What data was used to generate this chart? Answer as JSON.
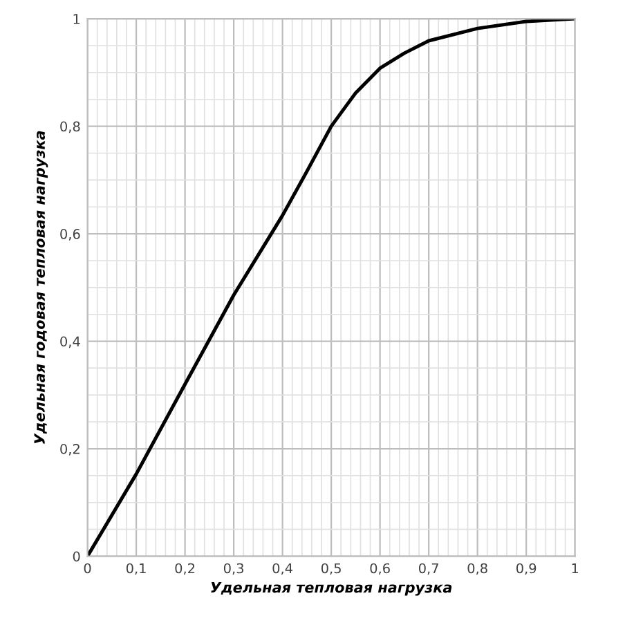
{
  "chart_data": {
    "type": "line",
    "xlabel": "Удельная тепловая нагрузка",
    "ylabel": "Удельная годовая тепловая нагрузка",
    "x": [
      0,
      0.1,
      0.2,
      0.3,
      0.4,
      0.45,
      0.5,
      0.55,
      0.6,
      0.65,
      0.7,
      0.8,
      0.9,
      1
    ],
    "series": [
      {
        "color": "#000000",
        "values": [
          0,
          0.153,
          0.32,
          0.486,
          0.634,
          0.716,
          0.8,
          0.862,
          0.908,
          0.936,
          0.959,
          0.982,
          0.995,
          1
        ]
      }
    ],
    "xlim": [
      0,
      1
    ],
    "xticks": [
      0,
      {
        "value": 0.1,
        "label": "0,1"
      },
      {
        "value": 0.2,
        "label": "0,2"
      },
      {
        "value": 0.3,
        "label": "0,3"
      },
      {
        "value": 0.4,
        "label": "0,4"
      },
      {
        "value": 0.5,
        "label": "0,5"
      },
      {
        "value": 0.6,
        "label": "0,6"
      },
      {
        "value": 0.7,
        "label": "0,7"
      },
      {
        "value": 0.8,
        "label": "0,8"
      },
      {
        "value": 0.9,
        "label": "0,9"
      },
      1
    ],
    "ylim": [
      0,
      1
    ],
    "yticks": [
      0,
      {
        "value": 0.2,
        "label": "0,2"
      },
      {
        "value": 0.4,
        "label": "0,4"
      },
      {
        "value": 0.6,
        "label": "0,6"
      },
      {
        "value": 0.8,
        "label": "0,8"
      },
      1
    ],
    "grid": true
  }
}
